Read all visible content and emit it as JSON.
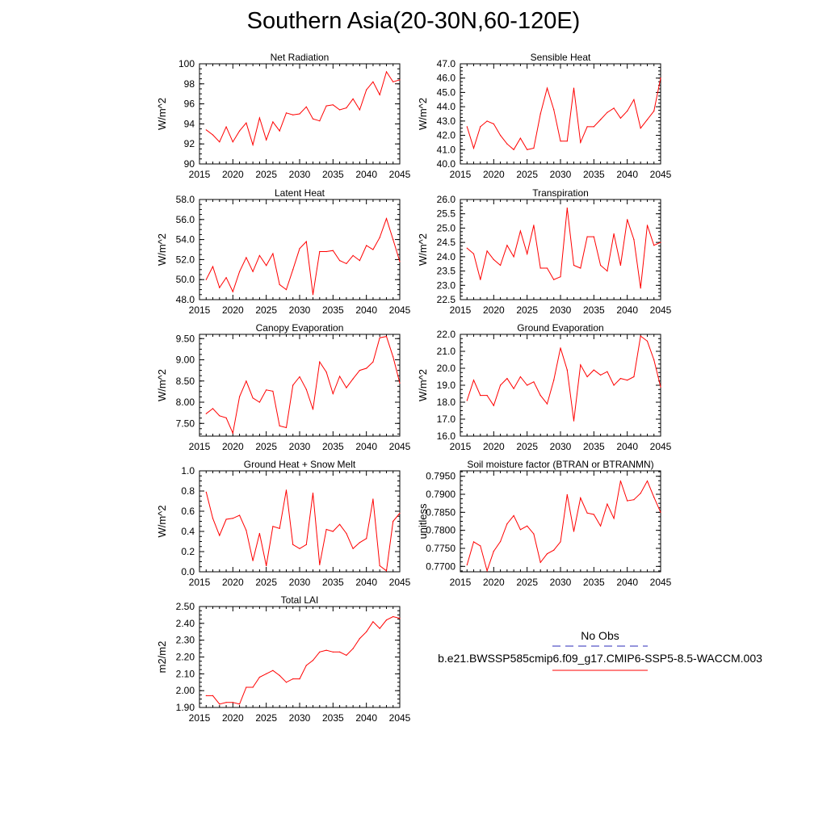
{
  "title": "Southern Asia(20-30N,60-120E)",
  "colors": {
    "model": "#ff0000",
    "obs": "#2b2bb8",
    "axis": "#000000"
  },
  "legend": {
    "obs_label": "No Obs",
    "model_label": "b.e21.BWSSP585cmip6.f09_g17.CMIP6-SSP5-8.5-WACCM.003"
  },
  "chart_data": [
    {
      "type": "line",
      "title": "Net Radiation",
      "ylabel": "W/m^2",
      "xlim": [
        2015,
        2045
      ],
      "ylim": [
        90,
        100
      ],
      "xticks": [
        2015,
        2020,
        2025,
        2030,
        2035,
        2040,
        2045
      ],
      "yticks": [
        "90",
        "92",
        "94",
        "96",
        "98",
        "100"
      ],
      "x": [
        2016,
        2017,
        2018,
        2019,
        2020,
        2021,
        2022,
        2023,
        2024,
        2025,
        2026,
        2027,
        2028,
        2029,
        2030,
        2031,
        2032,
        2033,
        2034,
        2035,
        2036,
        2037,
        2038,
        2039,
        2040,
        2041,
        2042,
        2043,
        2044,
        2045
      ],
      "series": [
        {
          "values": [
            93.4,
            92.9,
            92.2,
            93.7,
            92.2,
            93.3,
            94.1,
            91.9,
            94.6,
            92.4,
            94.2,
            93.3,
            95.1,
            94.9,
            95.0,
            95.7,
            94.5,
            94.3,
            95.8,
            95.9,
            95.4,
            95.6,
            96.5,
            95.4,
            97.4,
            98.2,
            96.9,
            99.2,
            98.2,
            98.4
          ]
        }
      ]
    },
    {
      "type": "line",
      "title": "Sensible Heat",
      "ylabel": "W/m^2",
      "xlim": [
        2015,
        2045
      ],
      "ylim": [
        40,
        47
      ],
      "xticks": [
        2015,
        2020,
        2025,
        2030,
        2035,
        2040,
        2045
      ],
      "yticks": [
        "40.0",
        "41.0",
        "42.0",
        "43.0",
        "44.0",
        "45.0",
        "46.0",
        "47.0"
      ],
      "x": [
        2016,
        2017,
        2018,
        2019,
        2020,
        2021,
        2022,
        2023,
        2024,
        2025,
        2026,
        2027,
        2028,
        2029,
        2030,
        2031,
        2032,
        2033,
        2034,
        2035,
        2036,
        2037,
        2038,
        2039,
        2040,
        2041,
        2042,
        2043,
        2044,
        2045
      ],
      "series": [
        {
          "values": [
            42.6,
            41.1,
            42.6,
            43.0,
            42.8,
            42.0,
            41.4,
            41.0,
            41.8,
            41.0,
            41.1,
            43.5,
            45.3,
            43.8,
            41.6,
            41.6,
            45.3,
            41.5,
            42.6,
            42.6,
            43.1,
            43.6,
            43.9,
            43.2,
            43.7,
            44.5,
            42.5,
            43.1,
            43.7,
            46.0
          ]
        }
      ]
    },
    {
      "type": "line",
      "title": "Latent Heat",
      "ylabel": "W/m^2",
      "xlim": [
        2015,
        2045
      ],
      "ylim": [
        48,
        58
      ],
      "xticks": [
        2015,
        2020,
        2025,
        2030,
        2035,
        2040,
        2045
      ],
      "yticks": [
        "48.0",
        "50.0",
        "52.0",
        "54.0",
        "56.0",
        "58.0"
      ],
      "x": [
        2016,
        2017,
        2018,
        2019,
        2020,
        2021,
        2022,
        2023,
        2024,
        2025,
        2026,
        2027,
        2028,
        2029,
        2030,
        2031,
        2032,
        2033,
        2034,
        2035,
        2036,
        2037,
        2038,
        2039,
        2040,
        2041,
        2042,
        2043,
        2044,
        2045
      ],
      "series": [
        {
          "values": [
            50.0,
            51.3,
            49.2,
            50.2,
            48.8,
            50.8,
            52.2,
            50.8,
            52.4,
            51.4,
            52.6,
            49.5,
            49.0,
            51.0,
            53.1,
            53.8,
            48.5,
            52.8,
            52.8,
            52.9,
            51.9,
            51.6,
            52.4,
            51.9,
            53.4,
            53.0,
            54.2,
            56.1,
            54.0,
            51.8
          ]
        }
      ]
    },
    {
      "type": "line",
      "title": "Transpiration",
      "ylabel": "W/m^2",
      "xlim": [
        2015,
        2045
      ],
      "ylim": [
        22.5,
        26
      ],
      "xticks": [
        2015,
        2020,
        2025,
        2030,
        2035,
        2040,
        2045
      ],
      "yticks": [
        "22.5",
        "23.0",
        "23.5",
        "24.0",
        "24.5",
        "25.0",
        "25.5",
        "26.0"
      ],
      "x": [
        2016,
        2017,
        2018,
        2019,
        2020,
        2021,
        2022,
        2023,
        2024,
        2025,
        2026,
        2027,
        2028,
        2029,
        2030,
        2031,
        2032,
        2033,
        2034,
        2035,
        2036,
        2037,
        2038,
        2039,
        2040,
        2041,
        2042,
        2043,
        2044,
        2045
      ],
      "series": [
        {
          "values": [
            24.3,
            24.1,
            23.2,
            24.2,
            23.9,
            23.7,
            24.4,
            24.0,
            24.9,
            24.1,
            25.1,
            23.6,
            23.6,
            23.2,
            23.3,
            25.7,
            23.7,
            23.6,
            24.7,
            24.7,
            23.7,
            23.5,
            24.8,
            23.7,
            25.3,
            24.6,
            22.9,
            25.1,
            24.4,
            24.5
          ]
        }
      ]
    },
    {
      "type": "line",
      "title": "Canopy Evaporation",
      "ylabel": "W/m^2",
      "xlim": [
        2015,
        2045
      ],
      "ylim": [
        7.2,
        9.6
      ],
      "xticks": [
        2015,
        2020,
        2025,
        2030,
        2035,
        2040,
        2045
      ],
      "yticks": [
        "7.50",
        "8.00",
        "8.50",
        "9.00",
        "9.50"
      ],
      "x": [
        2016,
        2017,
        2018,
        2019,
        2020,
        2021,
        2022,
        2023,
        2024,
        2025,
        2026,
        2027,
        2028,
        2029,
        2030,
        2031,
        2032,
        2033,
        2034,
        2035,
        2036,
        2037,
        2038,
        2039,
        2040,
        2041,
        2042,
        2043,
        2044,
        2045
      ],
      "series": [
        {
          "values": [
            7.73,
            7.85,
            7.68,
            7.63,
            7.27,
            8.13,
            8.5,
            8.1,
            8.0,
            8.29,
            8.26,
            7.44,
            7.4,
            8.4,
            8.6,
            8.3,
            7.83,
            8.95,
            8.71,
            8.2,
            8.61,
            8.34,
            8.55,
            8.75,
            8.8,
            8.95,
            9.52,
            9.55,
            9.07,
            8.45
          ]
        }
      ]
    },
    {
      "type": "line",
      "title": "Ground Evaporation",
      "ylabel": "W/m^2",
      "xlim": [
        2015,
        2045
      ],
      "ylim": [
        16,
        22
      ],
      "xticks": [
        2015,
        2020,
        2025,
        2030,
        2035,
        2040,
        2045
      ],
      "yticks": [
        "16.0",
        "17.0",
        "18.0",
        "19.0",
        "20.0",
        "21.0",
        "22.0"
      ],
      "x": [
        2016,
        2017,
        2018,
        2019,
        2020,
        2021,
        2022,
        2023,
        2024,
        2025,
        2026,
        2027,
        2028,
        2029,
        2030,
        2031,
        2032,
        2033,
        2034,
        2035,
        2036,
        2037,
        2038,
        2039,
        2040,
        2041,
        2042,
        2043,
        2044,
        2045
      ],
      "series": [
        {
          "values": [
            18.1,
            19.3,
            18.4,
            18.4,
            17.8,
            19.0,
            19.4,
            18.8,
            19.5,
            19.0,
            19.2,
            18.4,
            17.9,
            19.3,
            21.2,
            19.9,
            16.9,
            20.2,
            19.5,
            19.9,
            19.6,
            19.8,
            19.0,
            19.4,
            19.3,
            19.5,
            21.9,
            21.6,
            20.5,
            18.9
          ]
        }
      ]
    },
    {
      "type": "line",
      "title": "Ground Heat + Snow Melt",
      "ylabel": "W/m^2",
      "xlim": [
        2015,
        2045
      ],
      "ylim": [
        0,
        1
      ],
      "xticks": [
        2015,
        2020,
        2025,
        2030,
        2035,
        2040,
        2045
      ],
      "yticks": [
        "0.0",
        "0.2",
        "0.4",
        "0.6",
        "0.8",
        "1.0"
      ],
      "x": [
        2016,
        2017,
        2018,
        2019,
        2020,
        2021,
        2022,
        2023,
        2024,
        2025,
        2026,
        2027,
        2028,
        2029,
        2030,
        2031,
        2032,
        2033,
        2034,
        2035,
        2036,
        2037,
        2038,
        2039,
        2040,
        2041,
        2042,
        2043,
        2044,
        2045
      ],
      "series": [
        {
          "values": [
            0.79,
            0.53,
            0.36,
            0.52,
            0.53,
            0.56,
            0.41,
            0.11,
            0.38,
            0.06,
            0.45,
            0.43,
            0.81,
            0.27,
            0.23,
            0.27,
            0.78,
            0.07,
            0.42,
            0.4,
            0.47,
            0.38,
            0.23,
            0.29,
            0.33,
            0.72,
            0.06,
            0.01,
            0.5,
            0.58
          ]
        }
      ]
    },
    {
      "type": "line",
      "title": "Soil moisture factor (BTRAN or BTRANMN)",
      "ylabel": "unitless",
      "xlim": [
        2015,
        2045
      ],
      "ylim": [
        0.7685,
        0.7965
      ],
      "xticks": [
        2015,
        2020,
        2025,
        2030,
        2035,
        2040,
        2045
      ],
      "yticks": [
        "0.7700",
        "0.7750",
        "0.7800",
        "0.7850",
        "0.7900",
        "0.7950"
      ],
      "x": [
        2016,
        2017,
        2018,
        2019,
        2020,
        2021,
        2022,
        2023,
        2024,
        2025,
        2026,
        2027,
        2028,
        2029,
        2030,
        2031,
        2032,
        2033,
        2034,
        2035,
        2036,
        2037,
        2038,
        2039,
        2040,
        2041,
        2042,
        2043,
        2044,
        2045
      ],
      "series": [
        {
          "values": [
            0.7704,
            0.7768,
            0.7757,
            0.7688,
            0.7742,
            0.7769,
            0.7818,
            0.7841,
            0.7802,
            0.7812,
            0.779,
            0.7711,
            0.7735,
            0.7745,
            0.7768,
            0.7899,
            0.7797,
            0.789,
            0.7848,
            0.7844,
            0.7812,
            0.7873,
            0.7833,
            0.7937,
            0.7882,
            0.7885,
            0.7903,
            0.7937,
            0.7892,
            0.785
          ]
        }
      ]
    },
    {
      "type": "line",
      "title": "Total LAI",
      "ylabel": "m2/m2",
      "xlim": [
        2015,
        2045
      ],
      "ylim": [
        1.9,
        2.5
      ],
      "xticks": [
        2015,
        2020,
        2025,
        2030,
        2035,
        2040,
        2045
      ],
      "yticks": [
        "1.90",
        "2.00",
        "2.10",
        "2.20",
        "2.30",
        "2.40",
        "2.50"
      ],
      "x": [
        2016,
        2017,
        2018,
        2019,
        2020,
        2021,
        2022,
        2023,
        2024,
        2025,
        2026,
        2027,
        2028,
        2029,
        2030,
        2031,
        2032,
        2033,
        2034,
        2035,
        2036,
        2037,
        2038,
        2039,
        2040,
        2041,
        2042,
        2043,
        2044,
        2045
      ],
      "series": [
        {
          "values": [
            1.97,
            1.97,
            1.92,
            1.93,
            1.93,
            1.92,
            2.02,
            2.02,
            2.08,
            2.1,
            2.12,
            2.09,
            2.05,
            2.07,
            2.07,
            2.15,
            2.18,
            2.23,
            2.24,
            2.23,
            2.23,
            2.21,
            2.25,
            2.31,
            2.35,
            2.41,
            2.37,
            2.42,
            2.44,
            2.43
          ]
        }
      ]
    }
  ]
}
